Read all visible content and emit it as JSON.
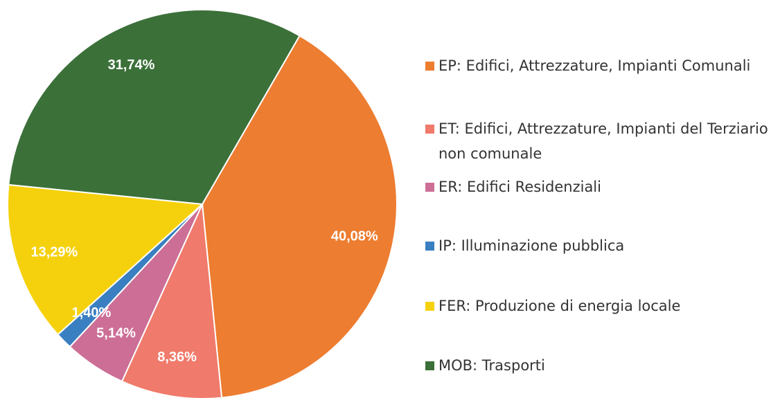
{
  "chart_data": {
    "type": "pie",
    "categories": [
      "EP: Edifici, Attrezzature, Impianti Comunali",
      "ET: Edifici, Attrezzature, Impianti del Terziario non comunale",
      "ER: Edifici Residenziali",
      "IP: Illuminazione pubblica",
      "FER: Produzione di energia locale",
      "MOB: Trasporti"
    ],
    "values": [
      40.08,
      8.36,
      5.14,
      1.4,
      13.29,
      31.74
    ],
    "value_labels": [
      "40,08%",
      "8,36%",
      "5,14%",
      "1,40%",
      "13,29%",
      "31,74%"
    ],
    "colors": [
      "#ed7d31",
      "#f07a6b",
      "#cc6e96",
      "#3a7fc1",
      "#f5d10d",
      "#3b7039"
    ],
    "legend": "right"
  }
}
